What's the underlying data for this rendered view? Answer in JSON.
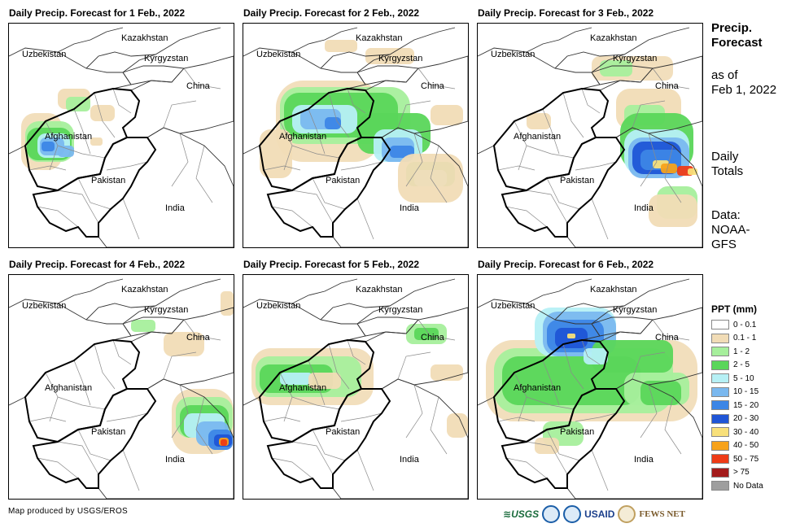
{
  "panels": [
    {
      "title": "Daily Precip. Forecast for 1 Feb., 2022"
    },
    {
      "title": "Daily Precip. Forecast for 2 Feb., 2022"
    },
    {
      "title": "Daily Precip. Forecast for 3 Feb., 2022"
    },
    {
      "title": "Daily Precip. Forecast for 4 Feb., 2022"
    },
    {
      "title": "Daily Precip. Forecast for 5 Feb., 2022"
    },
    {
      "title": "Daily Precip. Forecast for 6 Feb., 2022"
    }
  ],
  "countries": {
    "kazakhstan": "Kazakhstan",
    "uzbekistan": "Uzbekistan",
    "kyrgyzstan": "Kyrgyzstan",
    "china": "China",
    "afghanistan": "Afghanistan",
    "pakistan": "Pakistan",
    "india": "India"
  },
  "side": {
    "title_line1": "Precip.",
    "title_line2": "Forecast",
    "asof_line1": "as of",
    "asof_line2": "Feb 1, 2022",
    "daily_line1": "Daily",
    "daily_line2": "Totals",
    "data_line1": "Data:",
    "data_line2": "NOAA-",
    "data_line3": "GFS"
  },
  "legend": {
    "title": "PPT (mm)",
    "items": [
      {
        "label": "0 - 0.1",
        "color": "#ffffff"
      },
      {
        "label": "0.1 - 1",
        "color": "#f1dcb6"
      },
      {
        "label": "1 - 2",
        "color": "#a6ef9c"
      },
      {
        "label": "2 - 5",
        "color": "#5ad65a"
      },
      {
        "label": "5 - 10",
        "color": "#b6f0f5"
      },
      {
        "label": "10 - 15",
        "color": "#7ab8ef"
      },
      {
        "label": "15 - 20",
        "color": "#3d86e6"
      },
      {
        "label": "20 - 30",
        "color": "#1f55d6"
      },
      {
        "label": "30 - 40",
        "color": "#f8e07a"
      },
      {
        "label": "40 - 50",
        "color": "#f7a21a"
      },
      {
        "label": "50 - 75",
        "color": "#ee3b16"
      },
      {
        "label": "> 75",
        "color": "#a31b1b"
      },
      {
        "label": "No Data",
        "color": "#9e9e9e"
      }
    ]
  },
  "footer": "Map produced by USGS/EROS",
  "logos": {
    "usgs": "USGS",
    "usaid": "USAID",
    "fews": "FEWS NET"
  }
}
